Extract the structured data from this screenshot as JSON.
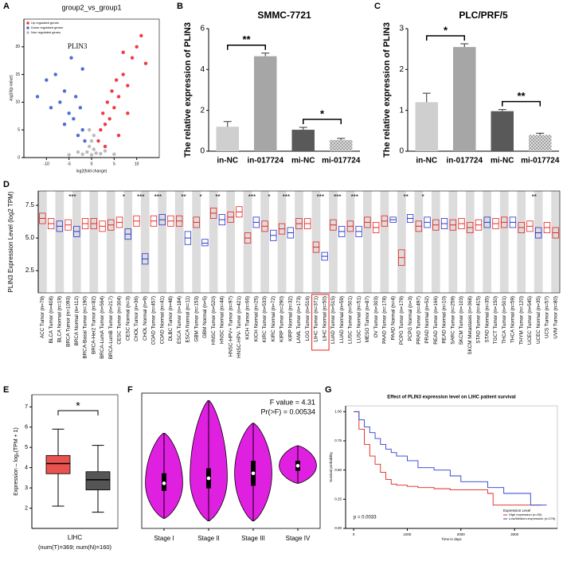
{
  "chart_data": [
    {
      "type": "scatter",
      "label": "A",
      "title": "group2_vs_group1",
      "xlabel": "log2(fold change)",
      "ylabel": "-log10(p value)",
      "xlim": [
        -15,
        15
      ],
      "ylim": [
        0,
        25
      ],
      "xticks": [
        -10,
        -5,
        0,
        5,
        10
      ],
      "yticks": [
        0,
        5,
        10,
        15,
        20
      ],
      "annotation": {
        "text": "PLIN3",
        "x": -1,
        "y": 20
      },
      "series": [
        {
          "name": "Up regulated genes",
          "color": "#f03a3f",
          "x": [
            1.5,
            2,
            2.5,
            3,
            3.5,
            4,
            4.5,
            5,
            5.5,
            6,
            7,
            8,
            9,
            10,
            11,
            3,
            6,
            8,
            12,
            7
          ],
          "values": [
            3,
            5,
            8,
            6,
            10,
            7,
            12,
            9,
            14,
            11,
            15,
            13,
            18,
            20,
            22,
            2,
            4,
            8,
            17,
            19
          ]
        },
        {
          "name": "Down regulated genes",
          "color": "#4a6fd6",
          "x": [
            -1.5,
            -2,
            -2.5,
            -3,
            -3.5,
            -4,
            -5,
            -6,
            -7,
            -8,
            -9,
            -10,
            -4.5,
            -2,
            -12,
            -6
          ],
          "values": [
            3,
            5,
            9,
            4,
            11,
            7,
            8,
            12,
            10,
            15,
            9,
            14,
            18,
            16,
            11,
            6
          ]
        },
        {
          "name": "Non regulated genes",
          "color": "#bbbbbb",
          "x": [
            -1,
            -0.5,
            0,
            0.5,
            1,
            -2,
            2,
            -3,
            3,
            -5,
            5,
            0,
            -0.5,
            0.5
          ],
          "values": [
            1,
            2,
            0.5,
            1.5,
            0.8,
            0.6,
            0.7,
            1,
            1.2,
            0.5,
            0.6,
            3,
            5,
            4
          ]
        }
      ]
    },
    {
      "type": "bar",
      "label": "B",
      "title": "SMMC-7721",
      "ylabel": "The relative expression of PLIN3",
      "categories": [
        "in-NC",
        "in-017724",
        "mi-NC",
        "mi-017724"
      ],
      "values": [
        1.2,
        4.65,
        1.05,
        0.55
      ],
      "errors": [
        0.25,
        0.15,
        0.12,
        0.08
      ],
      "colors": [
        "#cfcfcf",
        "#a6a6a6",
        "#595959",
        "#d9d9d9"
      ],
      "hatched": [
        false,
        false,
        false,
        true
      ],
      "ylim": [
        0,
        6
      ],
      "yticks": [
        0,
        2,
        4,
        6
      ],
      "annotations": [
        {
          "pair": [
            0,
            1
          ],
          "text": "**"
        },
        {
          "pair": [
            2,
            3
          ],
          "text": "*"
        }
      ]
    },
    {
      "type": "bar",
      "label": "C",
      "title": "PLC/PRF/5",
      "ylabel": "The relative expression of PLIN3",
      "categories": [
        "in-NC",
        "in-017724",
        "mi-NC",
        "mi-017724"
      ],
      "values": [
        1.2,
        2.55,
        0.98,
        0.4
      ],
      "errors": [
        0.22,
        0.08,
        0.04,
        0.04
      ],
      "colors": [
        "#cfcfcf",
        "#a6a6a6",
        "#595959",
        "#d9d9d9"
      ],
      "hatched": [
        false,
        false,
        false,
        true
      ],
      "ylim": [
        0,
        3
      ],
      "yticks": [
        0,
        1,
        2,
        3
      ],
      "annotations": [
        {
          "pair": [
            0,
            1
          ],
          "text": "*"
        },
        {
          "pair": [
            2,
            3
          ],
          "text": "**"
        }
      ]
    },
    {
      "type": "box",
      "label": "D",
      "ylabel": "PLIN3 Expression Level (log2 TPM)",
      "ylim": [
        0.8,
        8.6
      ],
      "yticks": [
        2.5,
        {
          "value": 5,
          "label": "5.0"
        },
        7.5
      ],
      "categories": [
        "ACC Tumor (n=79)",
        "BLCA Tumor (n=408)",
        "BLCA Normal (n=19)",
        "BRCA Tumor (n=1093)",
        "BRCA Normal (n=112)",
        "BRCA-Basal Tumor (n=190)",
        "BRCA-Her2 Tumor (n=82)",
        "BRCA-LumA Tumor (n=564)",
        "BRCA-LumB Tumor (n=217)",
        "CESC Tumor (n=304)",
        "CESC Normal (n=3)",
        "CHOL Tumor (n=36)",
        "CHOL Normal (n=9)",
        "COAD Tumor (n=457)",
        "COAD Normal (n=41)",
        "DLBC Tumor (n=48)",
        "ESCA Tumor (n=184)",
        "ESCA Normal (n=11)",
        "GBM Tumor (n=153)",
        "GBM Normal (n=5)",
        "HNSC Tumor (n=520)",
        "HNSC Normal (n=44)",
        "HNSC-HPV+ Tumor (n=97)",
        "HNSC-HPV- Tumor (n=421)",
        "KICH Tumor (n=66)",
        "KICH Normal (n=25)",
        "KIRC Tumor (n=533)",
        "KIRC Normal (n=72)",
        "KIRP Tumor (n=290)",
        "KIRP Normal (n=32)",
        "LAML Tumor (n=173)",
        "LGG Tumor (n=516)",
        "LIHC Tumor (n=371)",
        "LIHC Normal (n=50)",
        "LUAD Tumor (n=515)",
        "LUAD Normal (n=59)",
        "LUSC Tumor (n=501)",
        "LUSC Normal (n=51)",
        "MESO Tumor (n=87)",
        "OV Tumor (n=303)",
        "PAAD Tumor (n=178)",
        "PAAD Normal (n=4)",
        "PCPG Tumor (n=179)",
        "PCPG Normal (n=3)",
        "PRAD Tumor (n=497)",
        "PRAD Normal (n=52)",
        "READ Tumor (n=166)",
        "READ Normal (n=10)",
        "SARC Tumor (n=259)",
        "SKCM Tumor (n=103)",
        "SKCM Metastasis (n=368)",
        "STAD Tumor (n=415)",
        "STAD Normal (n=35)",
        "TGCT Tumor (n=150)",
        "THCA Tumor (n=501)",
        "THCA Normal (n=59)",
        "THYM Tumor (n=120)",
        "UCEC Tumor (n=545)",
        "UCEC Normal (n=35)",
        "UCS Tumor (n=57)",
        "UVM Tumor (n=80)"
      ],
      "q1": [
        6.1,
        5.7,
        5.5,
        5.6,
        5.1,
        5.7,
        5.7,
        5.5,
        5.6,
        5.8,
        4.9,
        5.9,
        3.0,
        5.9,
        6.0,
        5.9,
        5.9,
        4.5,
        5.8,
        4.4,
        6.5,
        6.0,
        6.2,
        6.6,
        4.6,
        5.8,
        5.5,
        4.8,
        5.3,
        5.0,
        5.7,
        5.7,
        3.9,
        3.3,
        5.6,
        5.1,
        5.5,
        5.1,
        5.8,
        5.4,
        5.9,
        6.2,
        2.9,
        6.2,
        5.5,
        5.8,
        5.6,
        5.7,
        5.6,
        5.7,
        5.4,
        5.6,
        5.8,
        5.7,
        5.8,
        5.8,
        5.4,
        5.5,
        5.0,
        5.4,
        5.0
      ],
      "median": [
        6.5,
        6.1,
        5.9,
        6.0,
        5.5,
        6.1,
        6.1,
        5.9,
        6.0,
        6.2,
        5.3,
        6.3,
        3.4,
        6.3,
        6.4,
        6.3,
        6.3,
        5.0,
        6.2,
        4.6,
        6.9,
        6.4,
        6.6,
        7.0,
        5.0,
        6.2,
        5.9,
        5.2,
        5.7,
        5.4,
        6.1,
        6.1,
        4.3,
        3.6,
        6.0,
        5.5,
        5.9,
        5.5,
        6.2,
        5.8,
        6.3,
        6.4,
        3.5,
        6.5,
        5.9,
        6.2,
        6.0,
        6.1,
        6.0,
        6.1,
        5.8,
        6.0,
        6.2,
        6.1,
        6.2,
        6.2,
        5.8,
        5.9,
        5.4,
        5.8,
        5.4
      ],
      "q3": [
        6.9,
        6.5,
        6.3,
        6.4,
        5.9,
        6.5,
        6.5,
        6.3,
        6.4,
        6.6,
        5.7,
        6.7,
        3.8,
        6.7,
        6.8,
        6.7,
        6.7,
        5.5,
        6.6,
        4.9,
        7.3,
        6.8,
        7.0,
        7.4,
        5.4,
        6.6,
        6.3,
        5.6,
        6.1,
        5.8,
        6.5,
        6.5,
        4.7,
        3.9,
        6.4,
        5.9,
        6.3,
        5.9,
        6.6,
        6.2,
        6.7,
        6.6,
        4.1,
        6.8,
        6.3,
        6.6,
        6.4,
        6.5,
        6.4,
        6.5,
        6.2,
        6.4,
        6.6,
        6.5,
        6.6,
        6.6,
        6.2,
        6.3,
        5.8,
        6.2,
        5.8
      ],
      "colors": [
        "#e8221e",
        "#e8221e",
        "#2233cc",
        "#e8221e",
        "#2233cc",
        "#e8221e",
        "#e8221e",
        "#e8221e",
        "#e8221e",
        "#e8221e",
        "#2233cc",
        "#e8221e",
        "#2233cc",
        "#e8221e",
        "#2233cc",
        "#e8221e",
        "#e8221e",
        "#2233cc",
        "#e8221e",
        "#2233cc",
        "#e8221e",
        "#2233cc",
        "#e8221e",
        "#e8221e",
        "#e8221e",
        "#2233cc",
        "#e8221e",
        "#2233cc",
        "#e8221e",
        "#2233cc",
        "#e8221e",
        "#e8221e",
        "#e8221e",
        "#2233cc",
        "#e8221e",
        "#2233cc",
        "#e8221e",
        "#2233cc",
        "#e8221e",
        "#e8221e",
        "#e8221e",
        "#2233cc",
        "#e8221e",
        "#2233cc",
        "#e8221e",
        "#2233cc",
        "#e8221e",
        "#2233cc",
        "#e8221e",
        "#e8221e",
        "#e8221e",
        "#e8221e",
        "#2233cc",
        "#e8221e",
        "#e8221e",
        "#2233cc",
        "#e8221e",
        "#e8221e",
        "#2233cc",
        "#e8221e",
        "#e8221e"
      ],
      "significance": [
        null,
        null,
        null,
        null,
        "***",
        null,
        null,
        null,
        null,
        null,
        "*",
        null,
        "***",
        null,
        "***",
        null,
        null,
        "**",
        null,
        "*",
        null,
        "**",
        null,
        null,
        null,
        "***",
        null,
        "*",
        null,
        "***",
        null,
        null,
        null,
        "***",
        null,
        "***",
        null,
        "***",
        null,
        null,
        null,
        null,
        null,
        "**",
        null,
        "*",
        null,
        null,
        null,
        null,
        null,
        null,
        null,
        null,
        null,
        null,
        null,
        null,
        "**",
        null,
        null
      ]
    },
    {
      "type": "box",
      "label": "E",
      "ylabel": "Expression – log₂(TPM + 1)",
      "xlabel": "LIHC",
      "note": "(num(T)=369; num(N)=160)",
      "ylim": [
        1,
        7.6
      ],
      "yticks": [
        2,
        3,
        4,
        5,
        6,
        7
      ],
      "min": [
        2.1,
        1.8
      ],
      "q1": [
        3.7,
        2.9
      ],
      "median": [
        4.2,
        3.4
      ],
      "q3": [
        4.6,
        3.8
      ],
      "max": [
        5.9,
        5.1
      ],
      "colors": [
        "#e8534f",
        "#555555"
      ],
      "significance_label": "*"
    },
    {
      "type": "violin",
      "label": "F",
      "color": "#e020e0",
      "annotations": [
        "F value = 4.31",
        "Pr(>F) = 0.00534"
      ],
      "ylim": [
        2.3,
        7.7
      ],
      "categories": [
        "Stage I",
        "Stage II",
        "Stage III",
        "Stage IV"
      ],
      "min": [
        2.7,
        2.6,
        2.6,
        4.1
      ],
      "q1": [
        3.8,
        3.9,
        4.0,
        4.6
      ],
      "median": [
        4.1,
        4.3,
        4.5,
        4.8
      ],
      "q3": [
        4.5,
        4.7,
        5.0,
        5.0
      ],
      "max": [
        6.1,
        7.4,
        6.5,
        5.6
      ]
    },
    {
      "type": "line",
      "label": "G",
      "step": true,
      "title": "Effect of PLIN3 expression level on LIHC patient survival",
      "xlabel": "Time in days",
      "ylabel": "Survival probability",
      "pvalue": "p = 0.0033",
      "legend_title": "Expression Level",
      "xlim": [
        -150,
        3800
      ],
      "ylim": [
        0,
        1.05
      ],
      "xticks": [
        0,
        1000,
        2000,
        3000
      ],
      "yticks": [
        {
          "value": 0,
          "label": "0.00"
        },
        {
          "value": 0.25,
          "label": "0.25"
        },
        {
          "value": 0.5,
          "label": "0.50"
        },
        {
          "value": 0.75,
          "label": "0.75"
        },
        {
          "value": 1,
          "label": "1.00"
        }
      ],
      "series": [
        {
          "name": "High expression (n=90)",
          "color": "#e3221e",
          "x": [
            0,
            100,
            200,
            300,
            400,
            500,
            600,
            700,
            800,
            1000,
            1200,
            1500,
            1800,
            2000,
            2500,
            2600,
            3000,
            3500
          ],
          "values": [
            1,
            0.85,
            0.72,
            0.62,
            0.55,
            0.48,
            0.42,
            0.38,
            0.37,
            0.36,
            0.35,
            0.34,
            0.33,
            0.33,
            0.3,
            0.2,
            0.2,
            0.2
          ]
        },
        {
          "name": "Low/Medium-expression (n=276)",
          "color": "#2a3fd1",
          "x": [
            0,
            100,
            200,
            300,
            400,
            500,
            600,
            700,
            800,
            1000,
            1200,
            1500,
            1800,
            2000,
            2500,
            2800,
            3300,
            3600
          ],
          "values": [
            1,
            0.93,
            0.87,
            0.82,
            0.77,
            0.72,
            0.68,
            0.65,
            0.62,
            0.58,
            0.52,
            0.5,
            0.45,
            0.4,
            0.35,
            0.3,
            0.2,
            0.2
          ]
        }
      ]
    }
  ]
}
